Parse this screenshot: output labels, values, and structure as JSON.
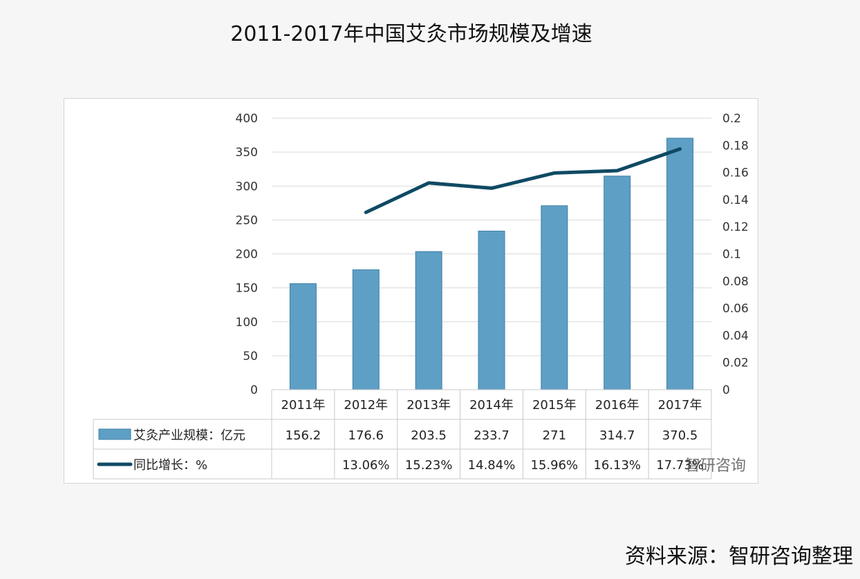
{
  "title": "2011-2017年中国艾灸市场规模及增速",
  "source": "资料来源：智研咨询整理",
  "watermark": "智研咨询",
  "colors": {
    "bar": "#5e9fc6",
    "bar_edge": "#3f7fa6",
    "line": "#0f4a63",
    "grid": "#d9d9d9"
  },
  "chart_data": {
    "type": "bar",
    "categories": [
      "2011年",
      "2012年",
      "2013年",
      "2014年",
      "2015年",
      "2016年",
      "2017年"
    ],
    "series": [
      {
        "name": "艾灸产业规模：亿元",
        "kind": "bar",
        "axis": "left",
        "values": [
          156.2,
          176.6,
          203.5,
          233.7,
          271,
          314.7,
          370.5
        ],
        "labels": [
          "156.2",
          "176.6",
          "203.5",
          "233.7",
          "271",
          "314.7",
          "370.5"
        ]
      },
      {
        "name": "同比增长：%",
        "kind": "line",
        "axis": "right",
        "values": [
          null,
          0.1306,
          0.1523,
          0.1484,
          0.1596,
          0.1613,
          0.1773
        ],
        "labels": [
          "",
          "13.06%",
          "15.23%",
          "14.84%",
          "15.96%",
          "16.13%",
          "17.73%"
        ]
      }
    ],
    "y_left": {
      "lim": [
        0,
        400
      ],
      "ticks": [
        "0",
        "50",
        "100",
        "150",
        "200",
        "250",
        "300",
        "350",
        "400"
      ]
    },
    "y_right": {
      "lim": [
        0,
        0.2
      ],
      "ticks": [
        "0",
        "0.02",
        "0.04",
        "0.06",
        "0.08",
        "0.1",
        "0.12",
        "0.14",
        "0.16",
        "0.18",
        "0.2"
      ]
    },
    "grid": true,
    "legend": "data-table"
  }
}
